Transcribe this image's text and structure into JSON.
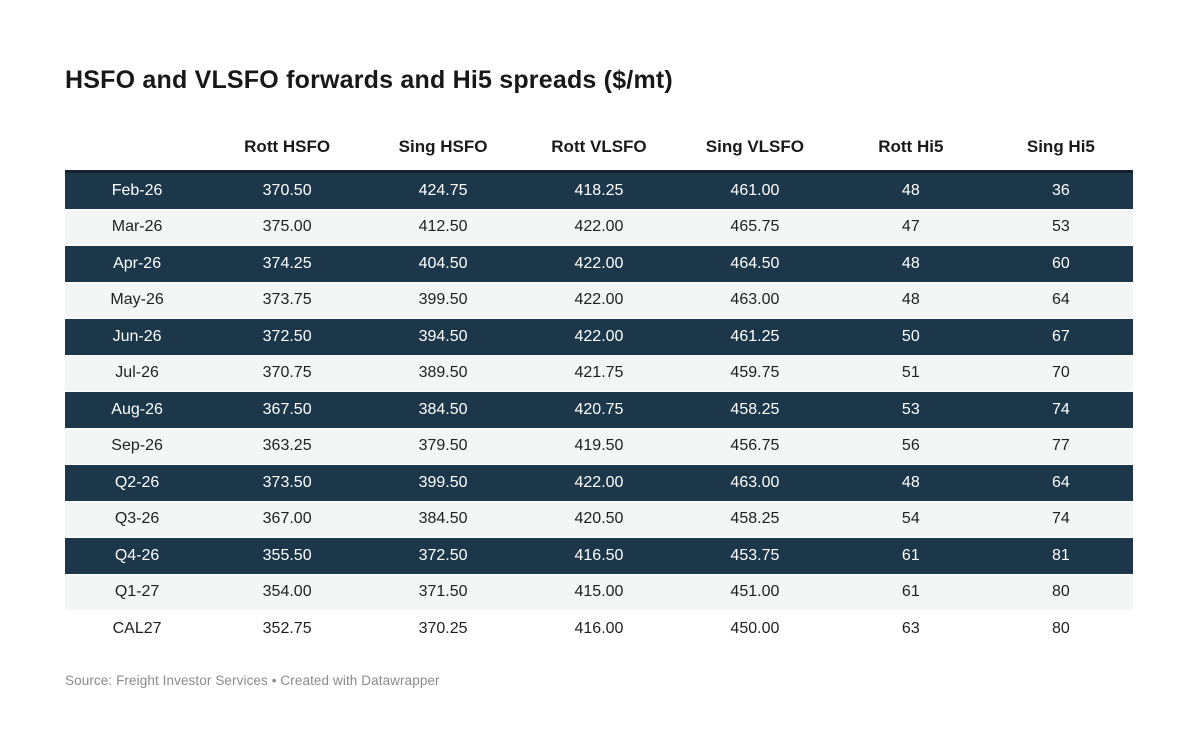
{
  "title": "HSFO and VLSFO forwards and Hi5 spreads ($/mt)",
  "footer": {
    "source": "Source: Freight Investor Services",
    "separator": " • ",
    "credit": "Created with Datawrapper"
  },
  "colors": {
    "highlight_row_bg": "#1c374a",
    "highlight_row_text": "#ffffff",
    "stripe_row_bg": "#f4f5f5",
    "plain_row_bg": "#ffffff",
    "body_text": "#1f1f1f",
    "header_text": "#1a1a1a",
    "top_border": "#14222e",
    "footer_text": "#8b8b8b"
  },
  "chart_data": {
    "type": "table",
    "title": "HSFO and VLSFO forwards and Hi5 spreads ($/mt)",
    "columns": [
      "",
      "Rott HSFO",
      "Sing HSFO",
      "Rott VLSFO",
      "Sing VLSFO",
      "Rott Hi5",
      "Sing Hi5"
    ],
    "rows": [
      {
        "label": "Feb-26",
        "values": [
          370.5,
          424.75,
          418.25,
          461.0,
          48,
          36
        ],
        "bg": "dark"
      },
      {
        "label": "Mar-26",
        "values": [
          375.0,
          412.5,
          422.0,
          465.75,
          47,
          53
        ],
        "bg": "stripe"
      },
      {
        "label": "Apr-26",
        "values": [
          374.25,
          404.5,
          422.0,
          464.5,
          48,
          60
        ],
        "bg": "dark"
      },
      {
        "label": "May-26",
        "values": [
          373.75,
          399.5,
          422.0,
          463.0,
          48,
          64
        ],
        "bg": "stripe"
      },
      {
        "label": "Jun-26",
        "values": [
          372.5,
          394.5,
          422.0,
          461.25,
          50,
          67
        ],
        "bg": "dark"
      },
      {
        "label": "Jul-26",
        "values": [
          370.75,
          389.5,
          421.75,
          459.75,
          51,
          70
        ],
        "bg": "stripe"
      },
      {
        "label": "Aug-26",
        "values": [
          367.5,
          384.5,
          420.75,
          458.25,
          53,
          74
        ],
        "bg": "dark"
      },
      {
        "label": "Sep-26",
        "values": [
          363.25,
          379.5,
          419.5,
          456.75,
          56,
          77
        ],
        "bg": "stripe"
      },
      {
        "label": "Q2-26",
        "values": [
          373.5,
          399.5,
          422.0,
          463.0,
          48,
          64
        ],
        "bg": "dark"
      },
      {
        "label": "Q3-26",
        "values": [
          367.0,
          384.5,
          420.5,
          458.25,
          54,
          74
        ],
        "bg": "stripe"
      },
      {
        "label": "Q4-26",
        "values": [
          355.5,
          372.5,
          416.5,
          453.75,
          61,
          81
        ],
        "bg": "dark"
      },
      {
        "label": "Q1-27",
        "values": [
          354.0,
          371.5,
          415.0,
          451.0,
          61,
          80
        ],
        "bg": "stripe"
      },
      {
        "label": "CAL27",
        "values": [
          352.75,
          370.25,
          416.0,
          450.0,
          63,
          80
        ],
        "bg": "plain"
      }
    ],
    "source": "Freight Investor Services",
    "credit": "Created with Datawrapper",
    "decimal_columns": 4,
    "legend_position": "none",
    "grid": false
  }
}
